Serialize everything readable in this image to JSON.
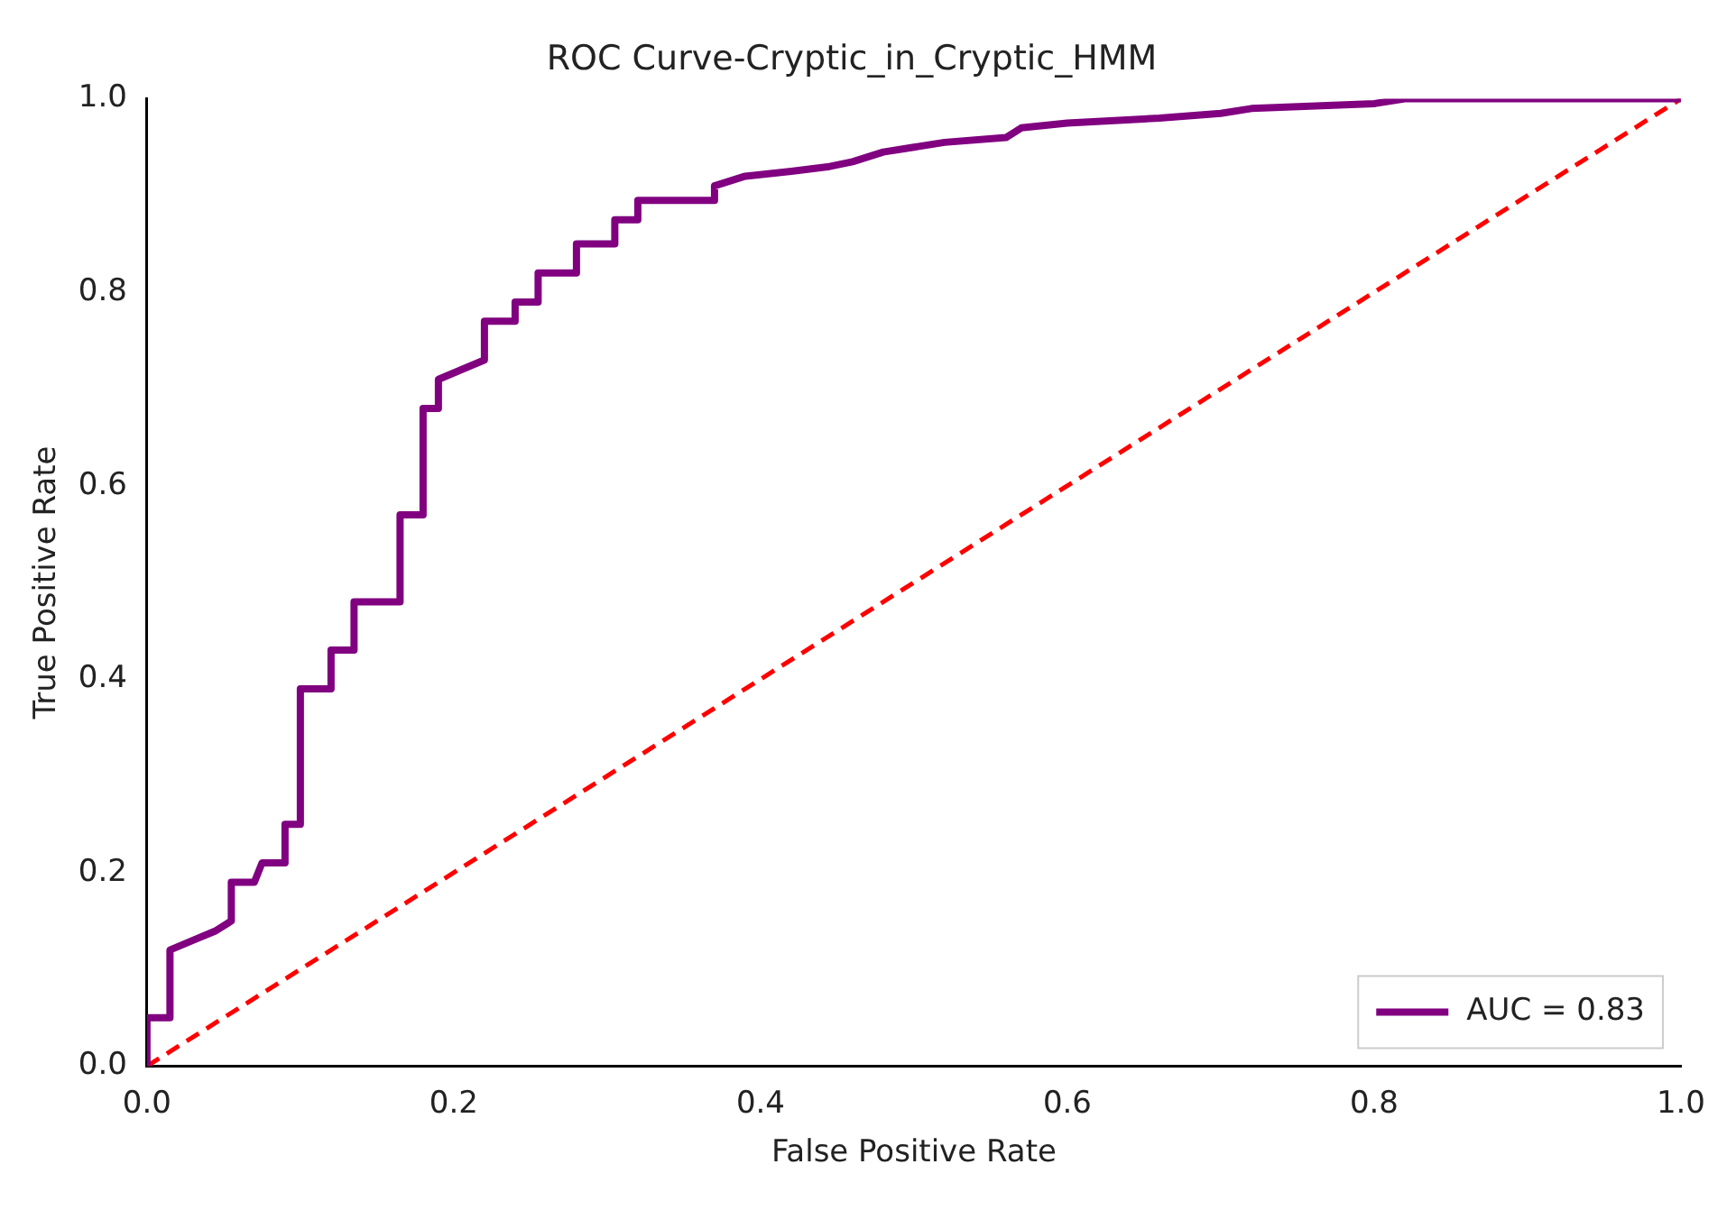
{
  "chart_data": {
    "type": "line",
    "title": "ROC Curve-Cryptic_in_Cryptic_HMM",
    "xlabel": "False Positive Rate",
    "ylabel": "True Positive Rate",
    "xlim": [
      0,
      1
    ],
    "ylim": [
      0,
      1
    ],
    "xticks": [
      {
        "value": 0,
        "label": "0.0"
      },
      {
        "value": 0.2,
        "label": "0.2"
      },
      {
        "value": 0.4,
        "label": "0.4"
      },
      {
        "value": 0.6,
        "label": "0.6"
      },
      {
        "value": 0.8,
        "label": "0.8"
      },
      {
        "value": 1,
        "label": "1.0"
      }
    ],
    "yticks": [
      {
        "value": 0,
        "label": "0.0"
      },
      {
        "value": 0.2,
        "label": "0.2"
      },
      {
        "value": 0.4,
        "label": "0.4"
      },
      {
        "value": 0.6,
        "label": "0.6"
      },
      {
        "value": 0.8,
        "label": "0.8"
      },
      {
        "value": 1,
        "label": "1.0"
      }
    ],
    "grid": false,
    "legend": "bottom right",
    "marker": "none",
    "series": [
      {
        "name": "AUC = 0.83",
        "color": "#800080",
        "line_style": "solid",
        "x": [
          0,
          0,
          0.015,
          0.015,
          0.03,
          0.045,
          0.055,
          0.055,
          0.07,
          0.075,
          0.09,
          0.09,
          0.1,
          0.1,
          0.12,
          0.12,
          0.135,
          0.135,
          0.165,
          0.165,
          0.18,
          0.18,
          0.19,
          0.19,
          0.205,
          0.22,
          0.22,
          0.24,
          0.24,
          0.255,
          0.255,
          0.28,
          0.28,
          0.305,
          0.305,
          0.32,
          0.32,
          0.37,
          0.37,
          0.39,
          0.42,
          0.445,
          0.46,
          0.48,
          0.5,
          0.52,
          0.56,
          0.57,
          0.6,
          0.66,
          0.7,
          0.72,
          0.8,
          0.82,
          1
        ],
        "values": [
          0,
          0.05,
          0.05,
          0.12,
          0.13,
          0.14,
          0.15,
          0.19,
          0.19,
          0.21,
          0.21,
          0.25,
          0.25,
          0.39,
          0.39,
          0.43,
          0.43,
          0.48,
          0.48,
          0.57,
          0.57,
          0.68,
          0.68,
          0.71,
          0.72,
          0.73,
          0.77,
          0.77,
          0.79,
          0.79,
          0.82,
          0.82,
          0.85,
          0.85,
          0.875,
          0.875,
          0.895,
          0.895,
          0.91,
          0.92,
          0.925,
          0.93,
          0.935,
          0.945,
          0.95,
          0.955,
          0.96,
          0.97,
          0.975,
          0.98,
          0.985,
          0.99,
          0.995,
          1,
          1
        ]
      },
      {
        "color": "#ff0000",
        "line_style": "dashed",
        "x": [
          0,
          1
        ],
        "values": [
          0,
          1
        ]
      }
    ]
  }
}
